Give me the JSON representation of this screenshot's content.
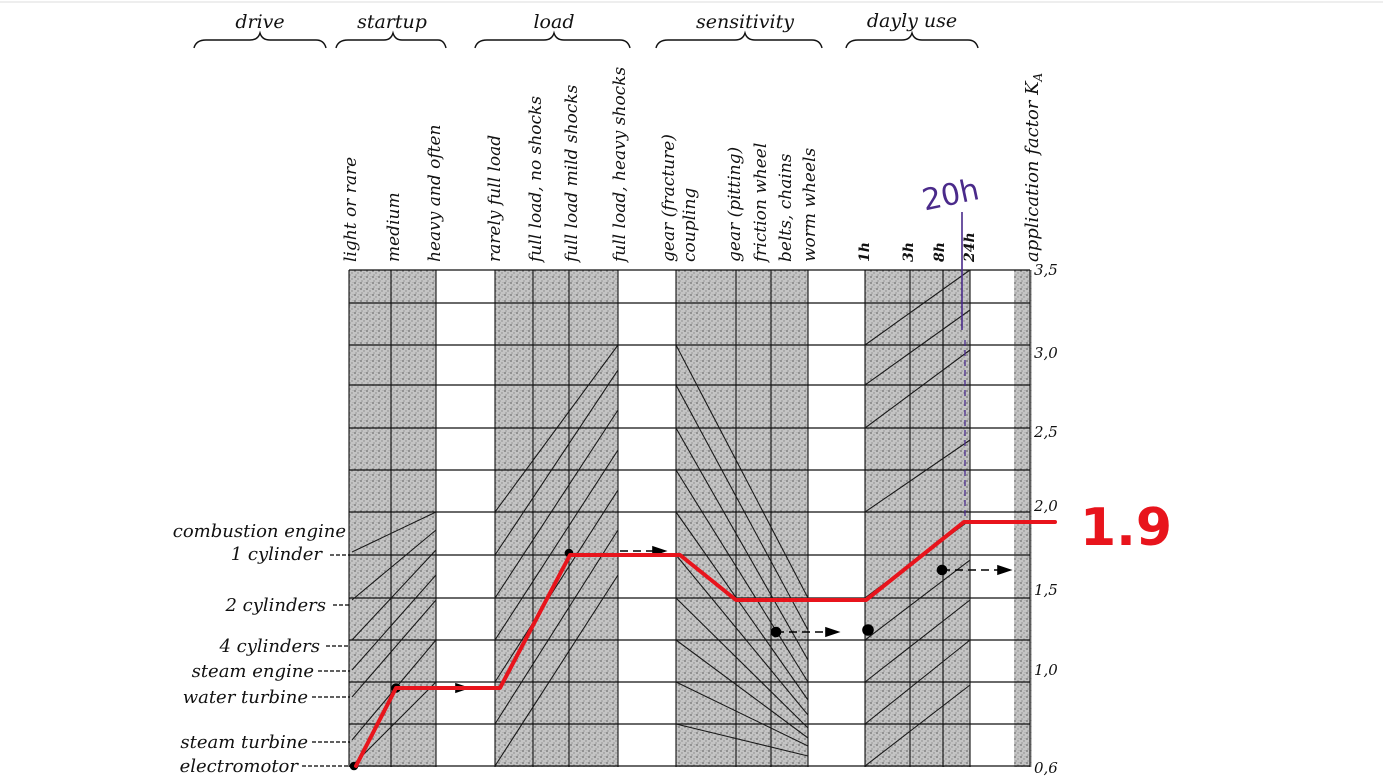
{
  "groups": {
    "drive": "drive",
    "startup": "startup",
    "load": "load",
    "sensitivity": "sensitivity",
    "daily_use": "dayly use"
  },
  "columns": [
    "light or rare",
    "medium",
    "heavy and often",
    "rarely full load",
    "full load, no shocks",
    "full load mild shocks",
    "full load, heavy shocks",
    "gear (fracture)",
    "coupling",
    "gear (pitting)",
    "friction wheel",
    "belts, chains",
    "worm wheels",
    "1h",
    "3h",
    "8h",
    "24h"
  ],
  "axis_label": "application factor K",
  "axis_subscript": "A",
  "ka_ticks": [
    "3,5",
    "3,0",
    "2,5",
    "2,0",
    "1,5",
    "1,0",
    "0,6"
  ],
  "drives": [
    "combustion engine",
    "1 cylinder",
    "2 cylinders",
    "4 cylinders",
    "steam engine",
    "water turbine",
    "steam turbine",
    "electromotor"
  ],
  "annotations": {
    "hours": "20h",
    "result": "1.9"
  },
  "colors": {
    "path": "#e8141c",
    "annotation_purple": "#4a2a8a",
    "grid": "#111111",
    "shade": "#9a9a9a"
  }
}
